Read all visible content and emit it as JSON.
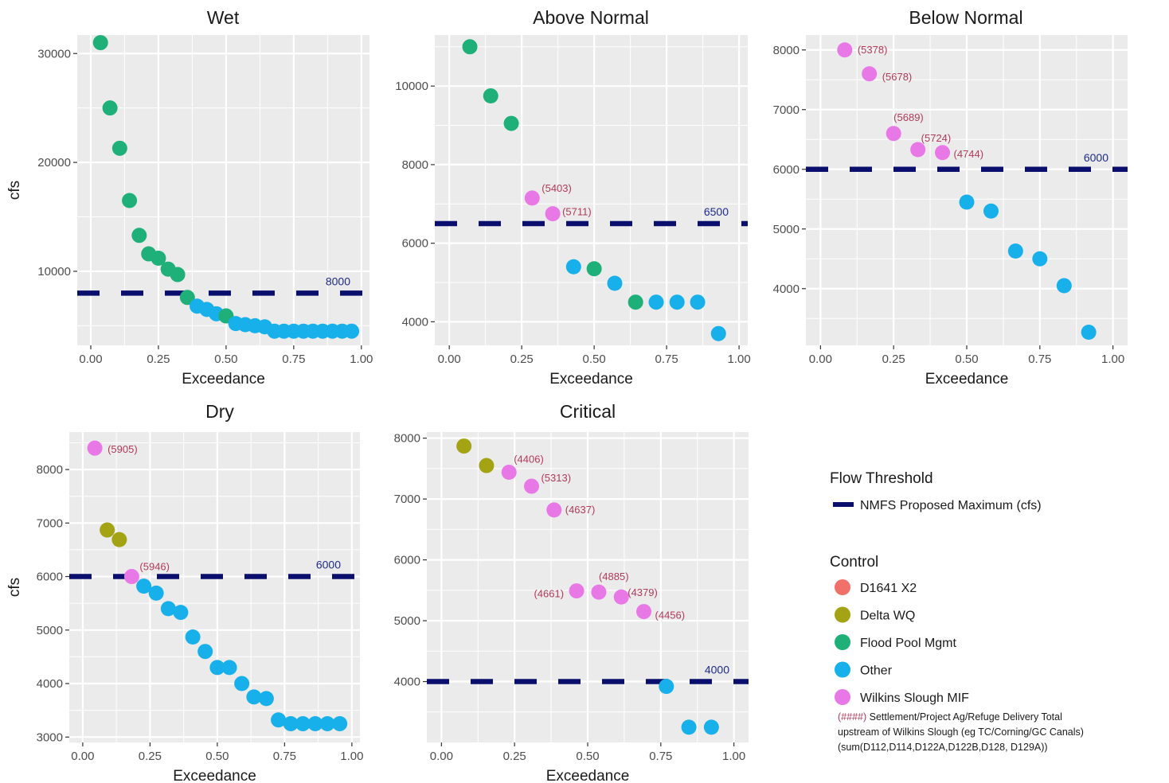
{
  "colors": {
    "Flood Pool Mgmt": "#1fb07a",
    "Other": "#17b0ea",
    "Wilkins Slough MIF": "#e878e6",
    "Delta WQ": "#a3a314",
    "D1641 X2": "#f0706a",
    "threshold": "#0a0f6e",
    "panel_bg": "#ebebeb",
    "grid": "#ffffff",
    "annotation": "#b03a5b"
  },
  "legend": {
    "threshold_title": "Flow Threshold",
    "threshold_label": "NMFS Proposed Maximum (cfs)",
    "control_title": "Control",
    "control_items": [
      {
        "label": "D1641 X2",
        "key": "D1641 X2"
      },
      {
        "label": "Delta WQ",
        "key": "Delta WQ"
      },
      {
        "label": "Flood Pool Mgmt",
        "key": "Flood Pool Mgmt"
      },
      {
        "label": "Other",
        "key": "Other"
      },
      {
        "label": "Wilkins Slough MIF",
        "key": "Wilkins Slough MIF"
      }
    ],
    "note_code": "(####)",
    "note_line1": " Settlement/Project Ag/Refuge Delivery Total",
    "note_line2": "upstream of Wilkins Slough (eg TC/Corning/GC Canals)",
    "note_line3": "(sum(D112,D114,D122A,D122B,D128, D129A))"
  },
  "chart_data": [
    {
      "type": "scatter",
      "title": "Wet",
      "xlabel": "Exceedance",
      "ylabel": "cfs",
      "xlim": [
        -0.05,
        1.03
      ],
      "ylim": [
        3200,
        31700
      ],
      "xticks": [
        0,
        0.25,
        0.5,
        0.75,
        1
      ],
      "xtick_labels": [
        "0.00",
        "0.25",
        "0.50",
        "0.75",
        "1.00"
      ],
      "yticks": [
        10000,
        20000,
        30000
      ],
      "ytick_labels": [
        "10000",
        "20000",
        "30000"
      ],
      "threshold": 8000,
      "threshold_label": "8000",
      "points": [
        {
          "x": 0.036,
          "y": 31000,
          "control": "Flood Pool Mgmt"
        },
        {
          "x": 0.071,
          "y": 25000,
          "control": "Flood Pool Mgmt"
        },
        {
          "x": 0.107,
          "y": 21300,
          "control": "Flood Pool Mgmt"
        },
        {
          "x": 0.143,
          "y": 16500,
          "control": "Flood Pool Mgmt"
        },
        {
          "x": 0.179,
          "y": 13300,
          "control": "Flood Pool Mgmt"
        },
        {
          "x": 0.214,
          "y": 11600,
          "control": "Flood Pool Mgmt"
        },
        {
          "x": 0.25,
          "y": 11200,
          "control": "Flood Pool Mgmt"
        },
        {
          "x": 0.286,
          "y": 10200,
          "control": "Flood Pool Mgmt"
        },
        {
          "x": 0.321,
          "y": 9700,
          "control": "Flood Pool Mgmt"
        },
        {
          "x": 0.357,
          "y": 7600,
          "control": "Flood Pool Mgmt"
        },
        {
          "x": 0.393,
          "y": 6800,
          "control": "Other"
        },
        {
          "x": 0.429,
          "y": 6500,
          "control": "Other"
        },
        {
          "x": 0.464,
          "y": 6100,
          "control": "Other"
        },
        {
          "x": 0.5,
          "y": 5900,
          "control": "Flood Pool Mgmt"
        },
        {
          "x": 0.536,
          "y": 5200,
          "control": "Other"
        },
        {
          "x": 0.571,
          "y": 5100,
          "control": "Other"
        },
        {
          "x": 0.607,
          "y": 5000,
          "control": "Other"
        },
        {
          "x": 0.643,
          "y": 4900,
          "control": "Other"
        },
        {
          "x": 0.679,
          "y": 4500,
          "control": "Other"
        },
        {
          "x": 0.714,
          "y": 4500,
          "control": "Other"
        },
        {
          "x": 0.75,
          "y": 4500,
          "control": "Other"
        },
        {
          "x": 0.786,
          "y": 4500,
          "control": "Other"
        },
        {
          "x": 0.821,
          "y": 4500,
          "control": "Other"
        },
        {
          "x": 0.857,
          "y": 4500,
          "control": "Other"
        },
        {
          "x": 0.893,
          "y": 4500,
          "control": "Other"
        },
        {
          "x": 0.929,
          "y": 4500,
          "control": "Other"
        },
        {
          "x": 0.964,
          "y": 4500,
          "control": "Other"
        }
      ]
    },
    {
      "type": "scatter",
      "title": "Above Normal",
      "xlabel": "Exceedance",
      "ylabel": "",
      "xlim": [
        -0.05,
        1.03
      ],
      "ylim": [
        3400,
        11300
      ],
      "xticks": [
        0,
        0.25,
        0.5,
        0.75,
        1
      ],
      "xtick_labels": [
        "0.00",
        "0.25",
        "0.50",
        "0.75",
        "1.00"
      ],
      "yticks": [
        4000,
        6000,
        8000,
        10000
      ],
      "ytick_labels": [
        "4000",
        "6000",
        "8000",
        "10000"
      ],
      "threshold": 6500,
      "threshold_label": "6500",
      "points": [
        {
          "x": 0.071,
          "y": 11000,
          "control": "Flood Pool Mgmt"
        },
        {
          "x": 0.143,
          "y": 9750,
          "control": "Flood Pool Mgmt"
        },
        {
          "x": 0.214,
          "y": 9050,
          "control": "Flood Pool Mgmt"
        },
        {
          "x": 0.286,
          "y": 7150,
          "control": "Wilkins Slough MIF",
          "label": "(5403)"
        },
        {
          "x": 0.357,
          "y": 6750,
          "control": "Wilkins Slough MIF",
          "label": "(5711)"
        },
        {
          "x": 0.429,
          "y": 5400,
          "control": "Other"
        },
        {
          "x": 0.5,
          "y": 5350,
          "control": "Flood Pool Mgmt"
        },
        {
          "x": 0.571,
          "y": 4980,
          "control": "Other"
        },
        {
          "x": 0.643,
          "y": 4500,
          "control": "Flood Pool Mgmt"
        },
        {
          "x": 0.714,
          "y": 4500,
          "control": "Other"
        },
        {
          "x": 0.786,
          "y": 4500,
          "control": "Other"
        },
        {
          "x": 0.857,
          "y": 4500,
          "control": "Other"
        },
        {
          "x": 0.929,
          "y": 3700,
          "control": "Other"
        }
      ]
    },
    {
      "type": "scatter",
      "title": "Below Normal",
      "xlabel": "Exceedance",
      "ylabel": "",
      "xlim": [
        -0.05,
        1.05
      ],
      "ylim": [
        3050,
        8250
      ],
      "xticks": [
        0,
        0.25,
        0.5,
        0.75,
        1
      ],
      "xtick_labels": [
        "0.00",
        "0.25",
        "0.50",
        "0.75",
        "1.00"
      ],
      "yticks": [
        4000,
        5000,
        6000,
        7000,
        8000
      ],
      "ytick_labels": [
        "4000",
        "5000",
        "6000",
        "7000",
        "8000"
      ],
      "threshold": 6000,
      "threshold_label": "6000",
      "points": [
        {
          "x": 0.083,
          "y": 8000,
          "control": "Wilkins Slough MIF",
          "label": "(5378)"
        },
        {
          "x": 0.167,
          "y": 7600,
          "control": "Wilkins Slough MIF",
          "label": "(5678)"
        },
        {
          "x": 0.25,
          "y": 6600,
          "control": "Wilkins Slough MIF",
          "label": "(5689)"
        },
        {
          "x": 0.333,
          "y": 6330,
          "control": "Wilkins Slough MIF",
          "label": "(5724)"
        },
        {
          "x": 0.417,
          "y": 6280,
          "control": "Wilkins Slough MIF",
          "label": "(4744)"
        },
        {
          "x": 0.5,
          "y": 5450,
          "control": "Other"
        },
        {
          "x": 0.583,
          "y": 5300,
          "control": "Other"
        },
        {
          "x": 0.667,
          "y": 4630,
          "control": "Other"
        },
        {
          "x": 0.75,
          "y": 4500,
          "control": "Other"
        },
        {
          "x": 0.833,
          "y": 4050,
          "control": "Other"
        },
        {
          "x": 0.917,
          "y": 3270,
          "control": "Other"
        }
      ]
    },
    {
      "type": "scatter",
      "title": "Dry",
      "xlabel": "Exceedance",
      "ylabel": "cfs",
      "xlim": [
        -0.05,
        1.03
      ],
      "ylim": [
        2900,
        8700
      ],
      "xticks": [
        0,
        0.25,
        0.5,
        0.75,
        1
      ],
      "xtick_labels": [
        "0.00",
        "0.25",
        "0.50",
        "0.75",
        "1.00"
      ],
      "yticks": [
        3000,
        4000,
        5000,
        6000,
        7000,
        8000
      ],
      "ytick_labels": [
        "3000",
        "4000",
        "5000",
        "6000",
        "7000",
        "8000"
      ],
      "threshold": 6000,
      "threshold_label": "6000",
      "points": [
        {
          "x": 0.045,
          "y": 8400,
          "control": "Wilkins Slough MIF",
          "label": "(5905)"
        },
        {
          "x": 0.091,
          "y": 6870,
          "control": "Delta WQ"
        },
        {
          "x": 0.136,
          "y": 6690,
          "control": "Delta WQ"
        },
        {
          "x": 0.182,
          "y": 6000,
          "control": "Wilkins Slough MIF",
          "label": "(5946)"
        },
        {
          "x": 0.227,
          "y": 5820,
          "control": "Other"
        },
        {
          "x": 0.273,
          "y": 5690,
          "control": "Other"
        },
        {
          "x": 0.318,
          "y": 5400,
          "control": "Other"
        },
        {
          "x": 0.364,
          "y": 5330,
          "control": "Other"
        },
        {
          "x": 0.409,
          "y": 4870,
          "control": "Other"
        },
        {
          "x": 0.455,
          "y": 4600,
          "control": "Other"
        },
        {
          "x": 0.5,
          "y": 4300,
          "control": "Other"
        },
        {
          "x": 0.545,
          "y": 4300,
          "control": "Other"
        },
        {
          "x": 0.591,
          "y": 4000,
          "control": "Other"
        },
        {
          "x": 0.636,
          "y": 3750,
          "control": "Other"
        },
        {
          "x": 0.682,
          "y": 3720,
          "control": "Other"
        },
        {
          "x": 0.727,
          "y": 3320,
          "control": "Other"
        },
        {
          "x": 0.773,
          "y": 3250,
          "control": "Other"
        },
        {
          "x": 0.818,
          "y": 3250,
          "control": "Other"
        },
        {
          "x": 0.864,
          "y": 3250,
          "control": "Other"
        },
        {
          "x": 0.909,
          "y": 3250,
          "control": "Other"
        },
        {
          "x": 0.955,
          "y": 3250,
          "control": "Other"
        }
      ]
    },
    {
      "type": "scatter",
      "title": "Critical",
      "xlabel": "Exceedance",
      "ylabel": "",
      "xlim": [
        -0.05,
        1.05
      ],
      "ylim": [
        3000,
        8100
      ],
      "xticks": [
        0,
        0.25,
        0.5,
        0.75,
        1
      ],
      "xtick_labels": [
        "0.00",
        "0.25",
        "0.50",
        "0.75",
        "1.00"
      ],
      "yticks": [
        4000,
        5000,
        6000,
        7000,
        8000
      ],
      "ytick_labels": [
        "4000",
        "5000",
        "6000",
        "7000",
        "8000"
      ],
      "threshold": 4000,
      "threshold_label": "4000",
      "points": [
        {
          "x": 0.077,
          "y": 7870,
          "control": "Delta WQ"
        },
        {
          "x": 0.154,
          "y": 7550,
          "control": "Delta WQ"
        },
        {
          "x": 0.231,
          "y": 7440,
          "control": "Wilkins Slough MIF",
          "label": "(4406)"
        },
        {
          "x": 0.308,
          "y": 7210,
          "control": "Wilkins Slough MIF",
          "label": "(5313)"
        },
        {
          "x": 0.385,
          "y": 6820,
          "control": "Wilkins Slough MIF",
          "label": "(4637)"
        },
        {
          "x": 0.462,
          "y": 5490,
          "control": "Wilkins Slough MIF",
          "label": "(4661)"
        },
        {
          "x": 0.538,
          "y": 5470,
          "control": "Wilkins Slough MIF",
          "label": "(4885)"
        },
        {
          "x": 0.615,
          "y": 5390,
          "control": "Wilkins Slough MIF",
          "label": "(4379)"
        },
        {
          "x": 0.692,
          "y": 5150,
          "control": "Wilkins Slough MIF",
          "label": "(4456)"
        },
        {
          "x": 0.769,
          "y": 3920,
          "control": "Other"
        },
        {
          "x": 0.846,
          "y": 3250,
          "control": "Other"
        },
        {
          "x": 0.923,
          "y": 3250,
          "control": "Other"
        }
      ]
    }
  ]
}
